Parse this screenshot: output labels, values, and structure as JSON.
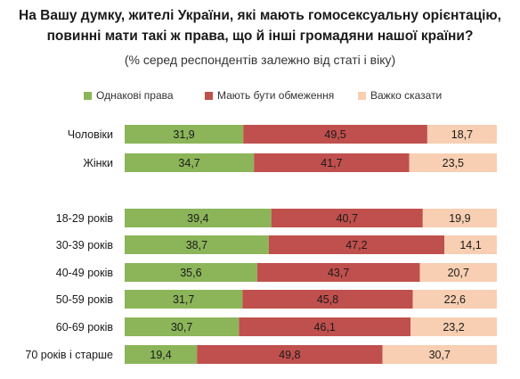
{
  "title_line1": "На Вашу думку, жителі України, які мають гомосексуальну орієнтацію,",
  "title_line2": "повинні мати такі ж права, що й інші громадяни нашої країни?",
  "subtitle": "(% серед респондентів залежно від статі і віку)",
  "colors": {
    "equal": "#8cb55a",
    "restricted": "#c0504d",
    "hard": "#f8cfb2"
  },
  "chart_data": {
    "type": "bar",
    "orientation": "horizontal",
    "stacked": true,
    "percent_total": 100,
    "categories": [
      "Чоловіки",
      "Жінки",
      "18-29 років",
      "30-39 років",
      "40-49 років",
      "50-59 років",
      "60-69 років",
      "70 років і старше"
    ],
    "series": [
      {
        "name": "Однакові права",
        "values": [
          31.9,
          34.7,
          39.4,
          38.7,
          35.6,
          31.7,
          30.7,
          19.4
        ]
      },
      {
        "name": "Мають бути обмеження",
        "values": [
          49.5,
          41.7,
          40.7,
          47.2,
          43.7,
          45.8,
          46.1,
          49.8
        ]
      },
      {
        "name": "Важко сказати",
        "values": [
          18.7,
          23.5,
          19.9,
          14.1,
          20.7,
          22.6,
          23.2,
          30.7
        ]
      }
    ],
    "value_labels": [
      [
        "31,9",
        "34,7",
        "39,4",
        "38,7",
        "35,6",
        "31,7",
        "30,7",
        "19,4"
      ],
      [
        "49,5",
        "41,7",
        "40,7",
        "47,2",
        "43,7",
        "45,8",
        "46,1",
        "49,8"
      ],
      [
        "18,7",
        "23,5",
        "19,9",
        "14,1",
        "20,7",
        "22,6",
        "23,2",
        "30,7"
      ]
    ],
    "groups": [
      [
        "Чоловіки",
        "Жінки"
      ],
      [
        "18-29 років",
        "30-39 років",
        "40-49 років",
        "50-59 років",
        "60-69 років",
        "70 років і старше"
      ]
    ],
    "legend_position": "top",
    "grid": false
  }
}
